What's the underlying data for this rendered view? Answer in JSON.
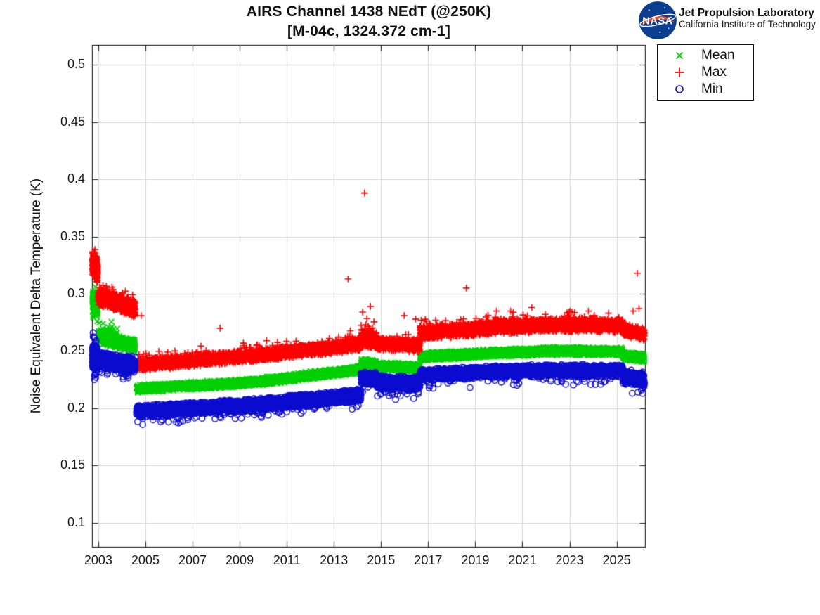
{
  "header": {
    "title_line1": "AIRS Channel 1438 NEdT (@250K)",
    "title_line2": "[M-04c, 1324.372 cm-1]"
  },
  "logo": {
    "nasa_text": "NASA",
    "org_line1": "Jet Propulsion Laboratory",
    "org_line2": "California Institute of Technology",
    "meatball_blue": "#0b3d91",
    "swoosh_red": "#fc3d21"
  },
  "legend": {
    "position": "top-right-outside",
    "items": [
      {
        "label": "Mean",
        "marker": "x",
        "color": "#00cf00"
      },
      {
        "label": "Max",
        "marker": "+",
        "color": "#ff0000"
      },
      {
        "label": "Min",
        "marker": "o",
        "color": "#0b0bcf"
      }
    ]
  },
  "chart_data": {
    "type": "scatter",
    "title": "AIRS Channel 1438 NEdT (@250K) [M-04c, 1324.372 cm-1]",
    "xlabel": "",
    "ylabel": "Noise Equivalent Delta Temperature (K)",
    "grid": true,
    "xlim": [
      2002.75,
      2026.22
    ],
    "ylim": [
      0.0787,
      0.517
    ],
    "x_tick_values": [
      2003,
      2005,
      2007,
      2009,
      2011,
      2013,
      2015,
      2017,
      2019,
      2021,
      2023,
      2025
    ],
    "x_tick_labels": [
      "2003",
      "2005",
      "2007",
      "2009",
      "2011",
      "2013",
      "2015",
      "2017",
      "2019",
      "2021",
      "2023",
      "2025"
    ],
    "y_tick_values": [
      0.5,
      0.45,
      0.4,
      0.35,
      0.3,
      0.25,
      0.2,
      0.15,
      0.1
    ],
    "y_tick_labels": [
      "0.5",
      "0.45",
      "0.4",
      "0.35",
      "0.3",
      "0.25",
      "0.2",
      "0.15",
      "0.1"
    ],
    "segment_fields": [
      "t_start",
      "t_end",
      "v_start",
      "v_end",
      "spread",
      "points_per_year",
      "tail_up_prob",
      "tail_up_mag",
      "tail_down_prob",
      "tail_down_mag"
    ],
    "series": [
      {
        "name": "Mean",
        "marker": "x",
        "color": "#00cf00",
        "segments": [
          [
            2002.75,
            2002.97,
            0.2955,
            0.29,
            0.009,
            1300,
            0,
            0,
            0.05,
            0.012
          ],
          [
            2003.0,
            2003.82,
            0.263,
            0.258,
            0.0065,
            600,
            0.04,
            0.008,
            0,
            0
          ],
          [
            2003.88,
            2004.56,
            0.2575,
            0.2545,
            0.006,
            600,
            0,
            0,
            0,
            0
          ],
          [
            2004.62,
            2009.5,
            0.217,
            0.2225,
            0.0038,
            350,
            0,
            0,
            0,
            0
          ],
          [
            2009.5,
            2014.15,
            0.2225,
            0.234,
            0.0038,
            350,
            0,
            0,
            0,
            0
          ],
          [
            2014.15,
            2014.8,
            0.2392,
            0.2385,
            0.0045,
            350,
            0,
            0,
            0,
            0
          ],
          [
            2014.8,
            2016.65,
            0.2368,
            0.2355,
            0.004,
            350,
            0,
            0,
            0,
            0
          ],
          [
            2016.65,
            2019.0,
            0.2452,
            0.2472,
            0.004,
            350,
            0,
            0,
            0,
            0
          ],
          [
            2019.0,
            2022.2,
            0.2476,
            0.25,
            0.004,
            350,
            0,
            0,
            0,
            0
          ],
          [
            2022.2,
            2025.25,
            0.25,
            0.2496,
            0.004,
            350,
            0,
            0,
            0,
            0
          ],
          [
            2025.25,
            2026.18,
            0.2458,
            0.2438,
            0.004,
            350,
            0,
            0,
            0,
            0
          ]
        ],
        "outliers": [
          [
            2002.8,
            0.279
          ],
          [
            2002.88,
            0.306
          ]
        ]
      },
      {
        "name": "Max",
        "marker": "+",
        "color": "#ff0000",
        "segments": [
          [
            2002.75,
            2002.97,
            0.327,
            0.321,
            0.012,
            1300,
            0.06,
            0.006,
            0,
            0
          ],
          [
            2003.0,
            2003.82,
            0.2975,
            0.293,
            0.0085,
            600,
            0.05,
            0.009,
            0,
            0
          ],
          [
            2003.88,
            2004.56,
            0.292,
            0.2865,
            0.008,
            600,
            0.04,
            0.006,
            0,
            0
          ],
          [
            2004.62,
            2009.5,
            0.238,
            0.246,
            0.0058,
            350,
            0.03,
            0.007,
            0,
            0
          ],
          [
            2009.5,
            2014.15,
            0.246,
            0.2555,
            0.0058,
            350,
            0.03,
            0.007,
            0,
            0
          ],
          [
            2014.15,
            2014.8,
            0.2615,
            0.259,
            0.0085,
            350,
            0.06,
            0.011,
            0,
            0
          ],
          [
            2014.8,
            2016.65,
            0.2565,
            0.2545,
            0.006,
            350,
            0.03,
            0.007,
            0,
            0
          ],
          [
            2016.65,
            2019.0,
            0.2655,
            0.269,
            0.0065,
            350,
            0.03,
            0.007,
            0,
            0
          ],
          [
            2019.0,
            2022.2,
            0.2695,
            0.273,
            0.0065,
            350,
            0.03,
            0.007,
            0,
            0
          ],
          [
            2022.2,
            2025.25,
            0.273,
            0.272,
            0.0065,
            350,
            0.03,
            0.007,
            0,
            0
          ],
          [
            2025.25,
            2026.18,
            0.2685,
            0.2645,
            0.006,
            350,
            0.03,
            0.006,
            0,
            0
          ]
        ],
        "outliers": [
          [
            2004.82,
            0.281
          ],
          [
            2008.17,
            0.27
          ],
          [
            2013.6,
            0.313
          ],
          [
            2014.22,
            0.284
          ],
          [
            2014.3,
            0.388
          ],
          [
            2014.55,
            0.289
          ],
          [
            2015.98,
            0.281
          ],
          [
            2016.47,
            0.278
          ],
          [
            2017.32,
            0.277
          ],
          [
            2018.62,
            0.305
          ],
          [
            2019.9,
            0.285
          ],
          [
            2020.5,
            0.285
          ],
          [
            2021.4,
            0.288
          ],
          [
            2021.97,
            0.282
          ],
          [
            2023.1,
            0.284
          ],
          [
            2023.8,
            0.285
          ],
          [
            2025.7,
            0.285
          ],
          [
            2025.88,
            0.318
          ],
          [
            2025.95,
            0.287
          ]
        ]
      },
      {
        "name": "Min",
        "marker": "o",
        "color": "#0b0bcf",
        "segments": [
          [
            2002.75,
            2002.97,
            0.2455,
            0.2425,
            0.011,
            1300,
            0.05,
            0.014,
            0.05,
            0.012
          ],
          [
            2003.0,
            2003.82,
            0.2425,
            0.24,
            0.0075,
            600,
            0,
            0,
            0.04,
            0.009
          ],
          [
            2003.88,
            2004.56,
            0.24,
            0.2375,
            0.0075,
            600,
            0,
            0,
            0.04,
            0.009
          ],
          [
            2004.62,
            2009.5,
            0.1975,
            0.2025,
            0.0058,
            350,
            0,
            0,
            0.03,
            0.008
          ],
          [
            2009.5,
            2014.15,
            0.2025,
            0.2115,
            0.0058,
            350,
            0,
            0,
            0.03,
            0.008
          ],
          [
            2014.15,
            2014.8,
            0.2268,
            0.2255,
            0.006,
            350,
            0,
            0,
            0.03,
            0.008
          ],
          [
            2014.8,
            2016.65,
            0.2228,
            0.2215,
            0.0065,
            350,
            0,
            0,
            0.04,
            0.01
          ],
          [
            2016.65,
            2019.0,
            0.229,
            0.2312,
            0.0055,
            350,
            0,
            0,
            0.03,
            0.008
          ],
          [
            2019.0,
            2022.2,
            0.2316,
            0.2332,
            0.0055,
            350,
            0,
            0,
            0.03,
            0.008
          ],
          [
            2022.2,
            2025.25,
            0.2332,
            0.2326,
            0.0055,
            350,
            0,
            0,
            0.03,
            0.008
          ],
          [
            2025.25,
            2026.18,
            0.2286,
            0.2246,
            0.007,
            350,
            0,
            0,
            0.04,
            0.009
          ]
        ],
        "outliers": [
          [
            2002.78,
            0.266
          ],
          [
            2002.82,
            0.262
          ],
          [
            2026.05,
            0.216
          ],
          [
            2026.1,
            0.213
          ]
        ]
      }
    ]
  }
}
